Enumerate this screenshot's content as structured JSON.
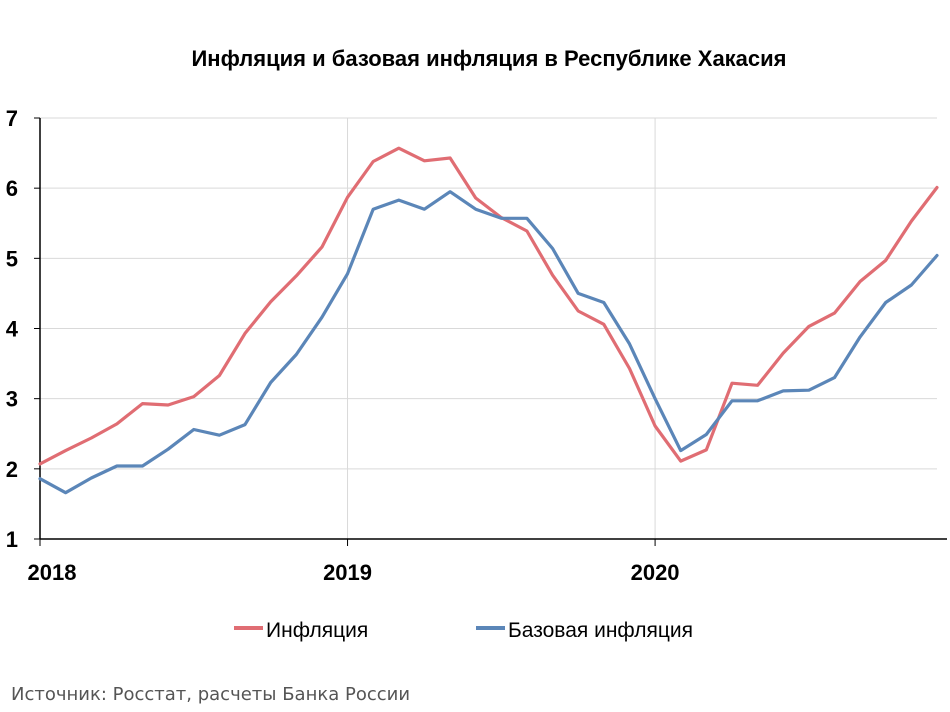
{
  "source_note": "Источник: Росстат, расчеты Банка России",
  "colors": {
    "inflation": "#e06d73",
    "core": "#5b86b8",
    "grid": "#d9d9d9",
    "axis": "#000000"
  },
  "chart_data": {
    "type": "line",
    "title": "Инфляция и базовая инфляция в Республике Хакасия",
    "xlabel": "",
    "ylabel": "",
    "ylim": [
      1,
      7
    ],
    "yticks": [
      1,
      2,
      3,
      4,
      5,
      6,
      7
    ],
    "x_start": "2018-01",
    "x_end": "2020-12",
    "x_ticks": [
      {
        "label": "2018",
        "at": "2018-01"
      },
      {
        "label": "2019",
        "at": "2019-01"
      },
      {
        "label": "2020",
        "at": "2020-01"
      }
    ],
    "x": [
      "2018-01",
      "2018-02",
      "2018-03",
      "2018-04",
      "2018-05",
      "2018-06",
      "2018-07",
      "2018-08",
      "2018-09",
      "2018-10",
      "2018-11",
      "2018-12",
      "2019-01",
      "2019-02",
      "2019-03",
      "2019-04",
      "2019-05",
      "2019-06",
      "2019-07",
      "2019-08",
      "2019-09",
      "2019-10",
      "2019-11",
      "2019-12",
      "2020-01",
      "2020-02",
      "2020-03",
      "2020-04",
      "2020-05",
      "2020-06",
      "2020-07",
      "2020-08",
      "2020-09",
      "2020-10",
      "2020-11",
      "2020-12"
    ],
    "grid": true,
    "legend_position": "bottom",
    "series": [
      {
        "name": "Инфляция",
        "color": "#e06d73",
        "values": [
          2.07,
          2.26,
          2.44,
          2.64,
          2.93,
          2.91,
          3.03,
          3.33,
          3.93,
          4.38,
          4.75,
          5.16,
          5.87,
          6.38,
          6.57,
          6.39,
          6.43,
          5.86,
          5.58,
          5.39,
          4.76,
          4.25,
          4.06,
          3.43,
          2.61,
          2.11,
          2.27,
          3.22,
          3.19,
          3.65,
          4.03,
          4.22,
          4.67,
          4.97,
          5.53,
          6.01
        ]
      },
      {
        "name": "Базовая инфляция",
        "color": "#5b86b8",
        "values": [
          1.86,
          1.66,
          1.87,
          2.04,
          2.04,
          2.28,
          2.56,
          2.48,
          2.63,
          3.23,
          3.63,
          4.16,
          4.78,
          5.7,
          5.83,
          5.7,
          5.95,
          5.7,
          5.57,
          5.57,
          5.14,
          4.5,
          4.37,
          3.78,
          3.0,
          2.26,
          2.49,
          2.97,
          2.97,
          3.11,
          3.12,
          3.3,
          3.88,
          4.37,
          4.62,
          5.04
        ]
      }
    ]
  }
}
